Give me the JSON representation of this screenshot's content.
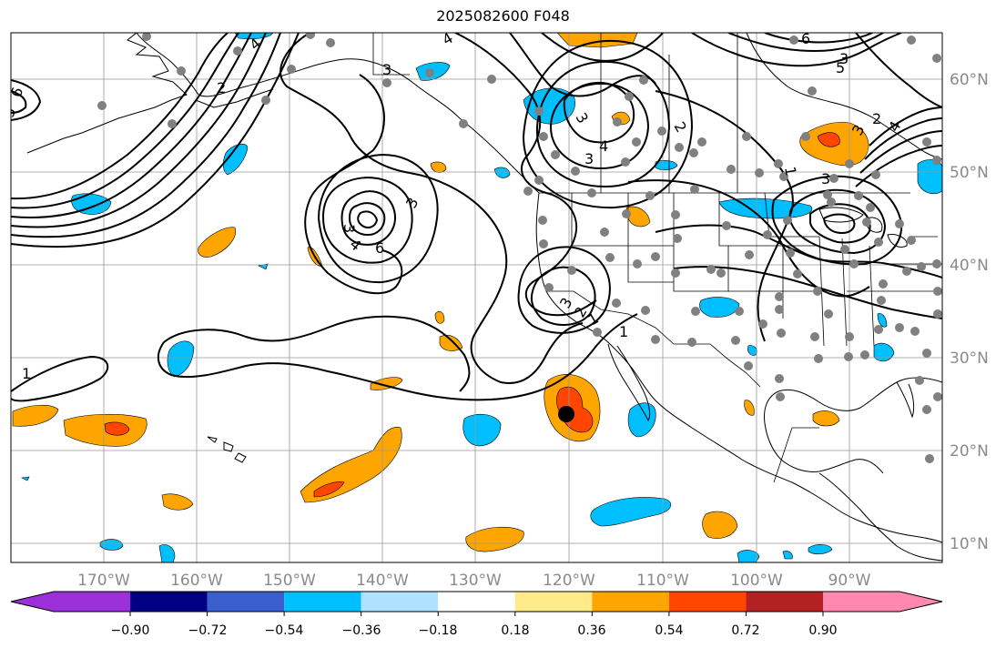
{
  "title": "2025082600 F048",
  "longitude_labels": [
    "170°W",
    "160°W",
    "150°W",
    "140°W",
    "130°W",
    "120°W",
    "110°W",
    "100°W",
    "90°W"
  ],
  "latitude_labels": [
    "60°N",
    "50°N",
    "40°N",
    "30°N",
    "20°N",
    "10°N"
  ],
  "colorbar": {
    "ticks": [
      "−0.90",
      "−0.72",
      "−0.54",
      "−0.36",
      "−0.18",
      "0.18",
      "0.36",
      "0.54",
      "0.72",
      "0.90"
    ],
    "colors": [
      "#9b30d9",
      "#000080",
      "#3a5fcd",
      "#00bfff",
      "#b0e2ff",
      "#ffffff",
      "#ffeb8a",
      "#ffa500",
      "#ff4500",
      "#b22222",
      "#ff88b0"
    ]
  },
  "contour_labels": [
    "1",
    "6",
    "5",
    "4",
    "3",
    "2",
    "3",
    "4",
    "6",
    "3",
    "4",
    "3",
    "2",
    "3",
    "4",
    "3",
    "2",
    "3",
    "5",
    "6",
    "4",
    "3",
    "2",
    "1",
    "3",
    "1",
    "1"
  ],
  "colors": {
    "negative_anomaly": "#00bfff",
    "positive_anomaly": "#ffa500",
    "strong_positive": "#ff4500",
    "station_dot": "#808080",
    "grid": "#999999"
  }
}
